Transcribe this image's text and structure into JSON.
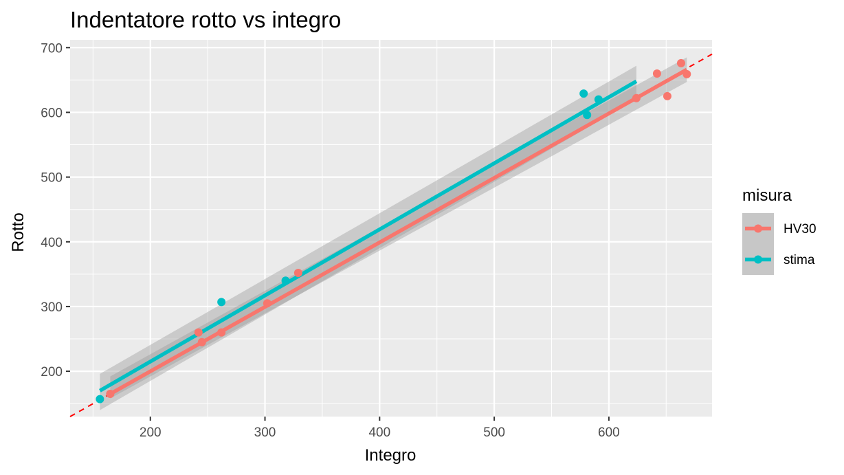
{
  "chart_data": {
    "type": "scatter",
    "title": "Indentatore rotto vs integro",
    "xlabel": "Integro",
    "ylabel": "Rotto",
    "xlim": [
      130,
      690
    ],
    "ylim": [
      130,
      712
    ],
    "x_ticks": [
      200,
      300,
      400,
      500,
      600
    ],
    "y_ticks": [
      200,
      300,
      400,
      500,
      600,
      700
    ],
    "x_tick_labels": [
      "200",
      "300",
      "400",
      "500",
      "600"
    ],
    "y_tick_labels": [
      "200",
      "300",
      "400",
      "500",
      "600",
      "700"
    ],
    "grid": true,
    "legend": {
      "title": "misura",
      "position": "right",
      "entries": [
        "HV30",
        "stima"
      ]
    },
    "reference_line": {
      "style": "dashed",
      "color": "#ff0000",
      "slope": 1,
      "intercept": 0
    },
    "series": [
      {
        "name": "HV30",
        "color": "#f8766d",
        "points": [
          [
            165,
            165
          ],
          [
            242,
            260
          ],
          [
            245,
            245
          ],
          [
            262,
            260
          ],
          [
            302,
            305
          ],
          [
            329,
            352
          ],
          [
            624,
            622
          ],
          [
            642,
            660
          ],
          [
            651,
            625
          ],
          [
            663,
            676
          ],
          [
            668,
            659
          ]
        ],
        "fit": {
          "x_range": [
            165,
            668
          ],
          "y_range": [
            165,
            666
          ]
        },
        "confidence_band": {
          "lower": [
            158,
            647
          ],
          "upper": [
            192,
            685
          ]
        }
      },
      {
        "name": "stima",
        "color": "#00bfc4",
        "points": [
          [
            156,
            157
          ],
          [
            262,
            307
          ],
          [
            318,
            340
          ],
          [
            578,
            629
          ],
          [
            581,
            596
          ],
          [
            591,
            620
          ]
        ],
        "fit": {
          "x_range": [
            156,
            624
          ],
          "y_range": [
            170,
            648
          ]
        },
        "confidence_band": {
          "lower": [
            140,
            620
          ],
          "upper": [
            196,
            672
          ]
        }
      }
    ]
  }
}
